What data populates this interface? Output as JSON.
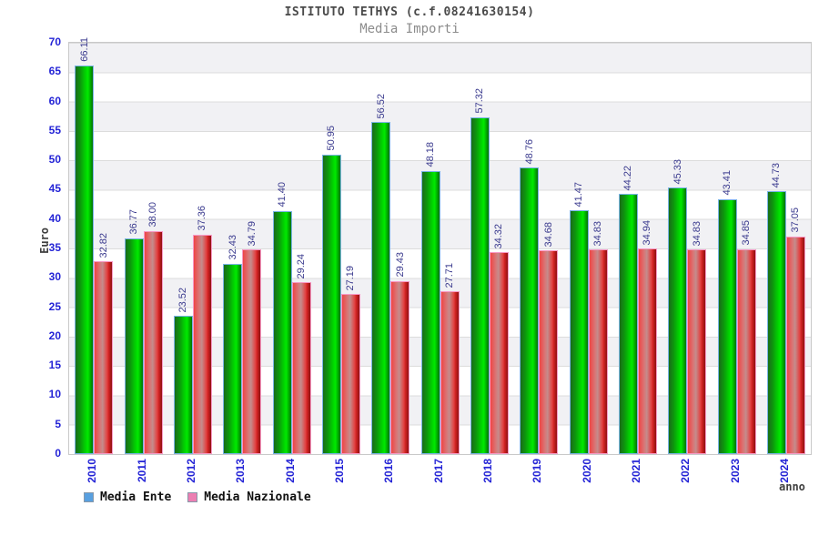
{
  "header": {
    "title": "ISTITUTO TETHYS (c.f.08241630154)",
    "subtitle": "Media Importi"
  },
  "chart_data": {
    "type": "bar",
    "title": "Media Importi",
    "xlabel": "anno",
    "ylabel": "Euro",
    "ylim": [
      0,
      70
    ],
    "yticks": [
      0,
      5,
      10,
      15,
      20,
      25,
      30,
      35,
      40,
      45,
      50,
      55,
      60,
      65,
      70
    ],
    "grid": "horizontal-bands",
    "legend_position": "bottom-left",
    "categories": [
      "2010",
      "2011",
      "2012",
      "2013",
      "2014",
      "2015",
      "2016",
      "2017",
      "2018",
      "2019",
      "2020",
      "2021",
      "2022",
      "2023",
      "2024"
    ],
    "series": [
      {
        "name": "Media Ente",
        "bar_color": "#00d400",
        "legend_color": "#58a0e0",
        "values": [
          66.11,
          36.77,
          23.52,
          32.43,
          41.4,
          50.95,
          56.52,
          48.18,
          57.32,
          48.76,
          41.47,
          44.22,
          45.33,
          43.41,
          44.73
        ]
      },
      {
        "name": "Media Nazionale",
        "bar_color": "#e24343",
        "legend_color": "#ec7fb2",
        "values": [
          32.82,
          38.0,
          37.36,
          34.79,
          29.24,
          27.19,
          29.43,
          27.71,
          34.32,
          34.68,
          34.83,
          34.94,
          34.83,
          34.85,
          37.05
        ]
      }
    ],
    "value_label_color": "#3a3a8e",
    "axis_tick_color": "#2424d6"
  }
}
